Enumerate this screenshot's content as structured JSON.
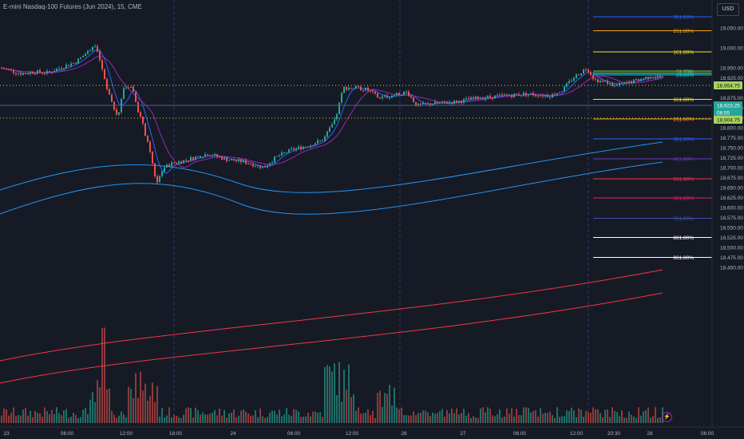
{
  "header": {
    "title": "E-mini Nasdaq-100 Futures (Jun 2024), 15, CME",
    "currency": "USD"
  },
  "price_axis": {
    "ticks": [
      "19,050.00",
      "19,000.00",
      "18,950.00",
      "18,925.00",
      "18,875.00",
      "18,850.00",
      "18,825.00",
      "18,800.00",
      "18,775.00",
      "18,750.00",
      "18,725.00",
      "18,700.00",
      "18,675.00",
      "18,650.00",
      "18,625.00",
      "18,600.00",
      "18,575.00",
      "18,550.00",
      "18,525.00",
      "18,500.00",
      "18,475.00",
      "18,450.00"
    ],
    "badges": [
      {
        "name": "price-badge-high",
        "label": "18,954.75",
        "bg": "#a6d35f",
        "fg": "#131722"
      },
      {
        "name": "price-badge-last",
        "label": "18,923.25",
        "bg": "#26a69a",
        "fg": "#ffffff"
      },
      {
        "name": "price-badge-countdown",
        "label": "06:55",
        "bg": "#26a69a",
        "fg": "#ffffff"
      },
      {
        "name": "price-badge-low",
        "label": "18,904.75",
        "bg": "#a6d35f",
        "fg": "#131722"
      }
    ]
  },
  "time_axis": {
    "labels": [
      "23",
      "06:00",
      "12:00",
      "18:00",
      "24",
      "06:00",
      "12:00",
      "26",
      "27",
      "06:00",
      "12:00",
      "20:30",
      "28",
      "06:00"
    ]
  },
  "fib_levels": [
    {
      "label": "361.80%",
      "price": 19078,
      "color": "#2962ff"
    },
    {
      "label": "261.80%",
      "price": 19043,
      "color": "#f7a21b"
    },
    {
      "label": "161.80%",
      "price": 18990,
      "color": "#f5e42a"
    },
    {
      "label": "61.80%",
      "price": 18942,
      "color": "#8bc34a"
    },
    {
      "label": "50.00%",
      "price": 18938,
      "color": "#4caf50"
    },
    {
      "label": "38.20%",
      "price": 18935,
      "color": "#26a69a"
    },
    {
      "label": "23.60%",
      "price": 18932,
      "color": "#00bcd4"
    },
    {
      "label": "161.80%",
      "price": 18871,
      "color": "#f5e42a"
    },
    {
      "label": "261.80%",
      "price": 18822,
      "color": "#f7a21b"
    },
    {
      "label": "361.80%",
      "price": 18772,
      "color": "#2962ff"
    },
    {
      "label": "461.80%",
      "price": 18722,
      "color": "#673ab7"
    },
    {
      "label": "561.80%",
      "price": 18672,
      "color": "#f23645"
    },
    {
      "label": "661.80%",
      "price": 18624,
      "color": "#e91e63"
    },
    {
      "label": "761.80%",
      "price": 18573,
      "color": "#3f51b5"
    },
    {
      "label": "861.80%",
      "price": 18525,
      "color": "#ffffff"
    },
    {
      "label": "961.80%",
      "price": 18475,
      "color": "#ffffff"
    }
  ],
  "chart_data": {
    "type": "candlestick",
    "title": "E-mini Nasdaq-100 Futures (Jun 2024), 15, CME",
    "ylim": [
      18440,
      19080
    ],
    "ohlc": [],
    "colors": {
      "up": "#26a69a",
      "down": "#ef5350",
      "ma_fast": "#2962ff",
      "ma_mid": "#9c27b0",
      "ma_slow1": "#2196f3",
      "ma_slow2": "#f23645"
    }
  }
}
